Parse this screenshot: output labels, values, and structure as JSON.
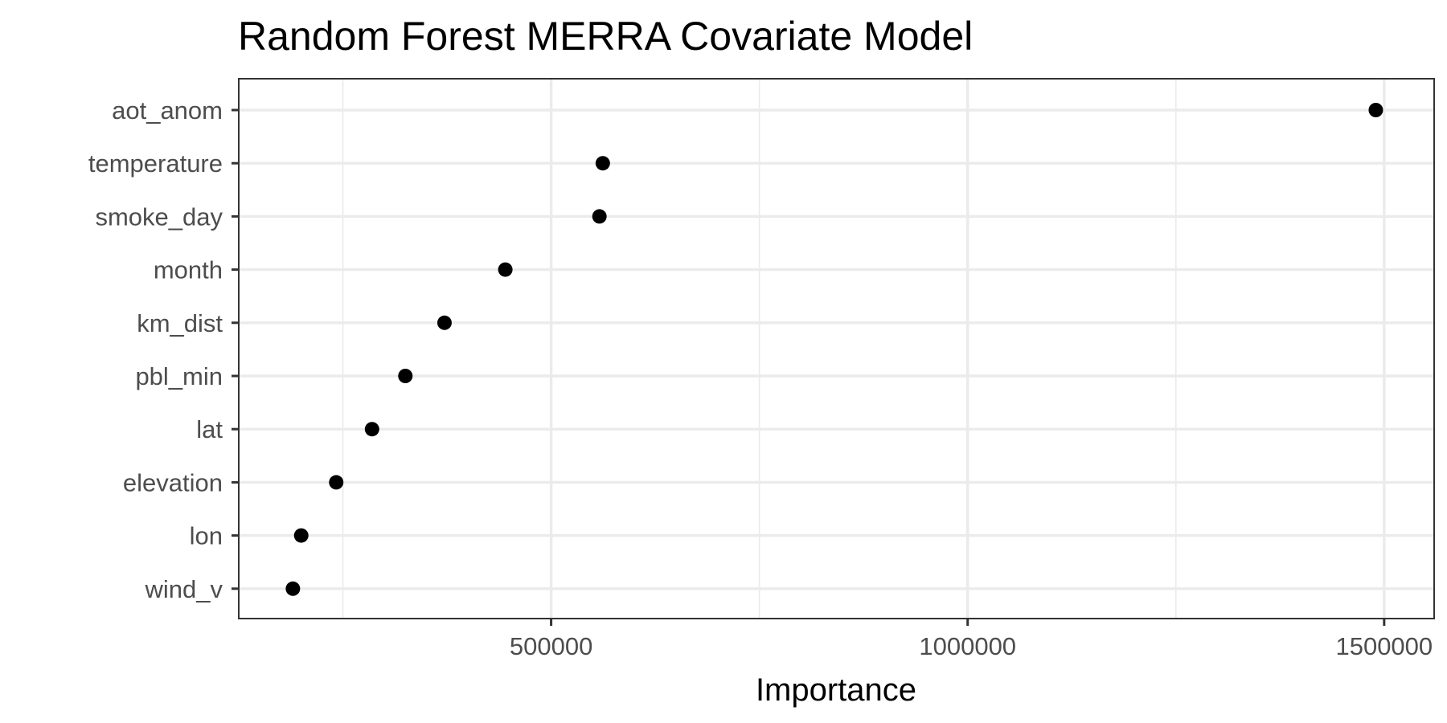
{
  "chart_data": {
    "type": "scatter",
    "title": "Random Forest MERRA Covariate Model",
    "xlabel": "Importance",
    "ylabel": "",
    "xlim": [
      125000,
      1560000
    ],
    "x_ticks": [
      500000,
      1000000,
      1500000
    ],
    "x_tick_labels": [
      "500000",
      "1000000",
      "1500000"
    ],
    "x_minor_ticks": [
      250000,
      750000,
      1250000
    ],
    "grid": true,
    "legend": "none",
    "point_color": "#000000",
    "categories": [
      "aot_anom",
      "temperature",
      "smoke_day",
      "month",
      "km_dist",
      "pbl_min",
      "lat",
      "elevation",
      "lon",
      "wind_v"
    ],
    "values": [
      1490000,
      562000,
      558000,
      445000,
      372000,
      325000,
      285000,
      242000,
      200000,
      190000
    ]
  }
}
